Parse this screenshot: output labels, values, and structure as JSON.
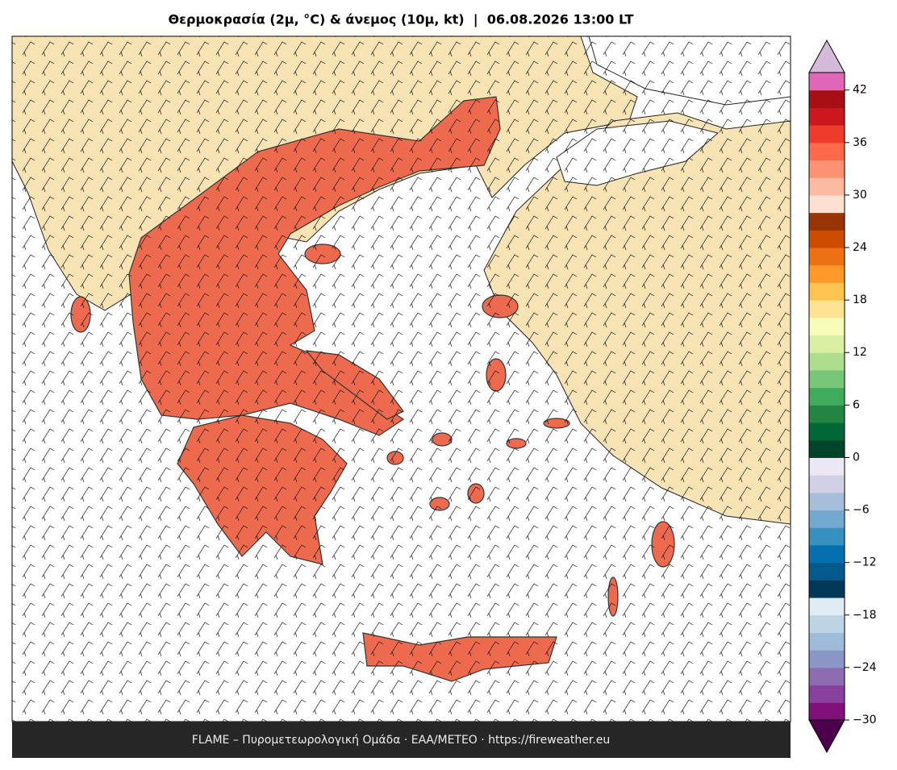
{
  "title": "Θερμοκρασία (2μ, °C) & άνεμος (10μ, kt)  |  06.08.2026 13:00 LT",
  "footer": "FLAME – Πυρομετεωρολογική Ομάδα · ΕΑΑ/METEO · https://fireweather.eu",
  "colorbar": {
    "clim": [
      -30,
      44
    ],
    "ticks": [
      {
        "value": -30,
        "label": "−30"
      },
      {
        "value": -24,
        "label": "−24"
      },
      {
        "value": -18,
        "label": "−18"
      },
      {
        "value": -12,
        "label": "−12"
      },
      {
        "value": -6,
        "label": "−6"
      },
      0,
      6,
      12,
      18,
      24,
      30,
      36,
      42
    ],
    "colors": [
      "#810f7c",
      "#88419d",
      "#8c6bb1",
      "#8c96c6",
      "#9ebcda",
      "#bfd3e6",
      "#e0ecf4",
      "#023858",
      "#045a8d",
      "#0570b0",
      "#3690c0",
      "#74a9cf",
      "#a6bddb",
      "#d0d1e6",
      "#ece7f2",
      "#004529",
      "#006837",
      "#238443",
      "#41ab5d",
      "#78c679",
      "#addd8e",
      "#d9f0a3",
      "#f7fcb9",
      "#fee391",
      "#fec44f",
      "#fe9929",
      "#ec7014",
      "#cc4c02",
      "#993404",
      "#fee0d2",
      "#fcbba1",
      "#fc9272",
      "#fb6a4a",
      "#ef3b2c",
      "#cb181d",
      "#a50f15",
      "#e066b8"
    ],
    "under_color": "#4d004b",
    "over_color": "#d4b9da"
  }
}
